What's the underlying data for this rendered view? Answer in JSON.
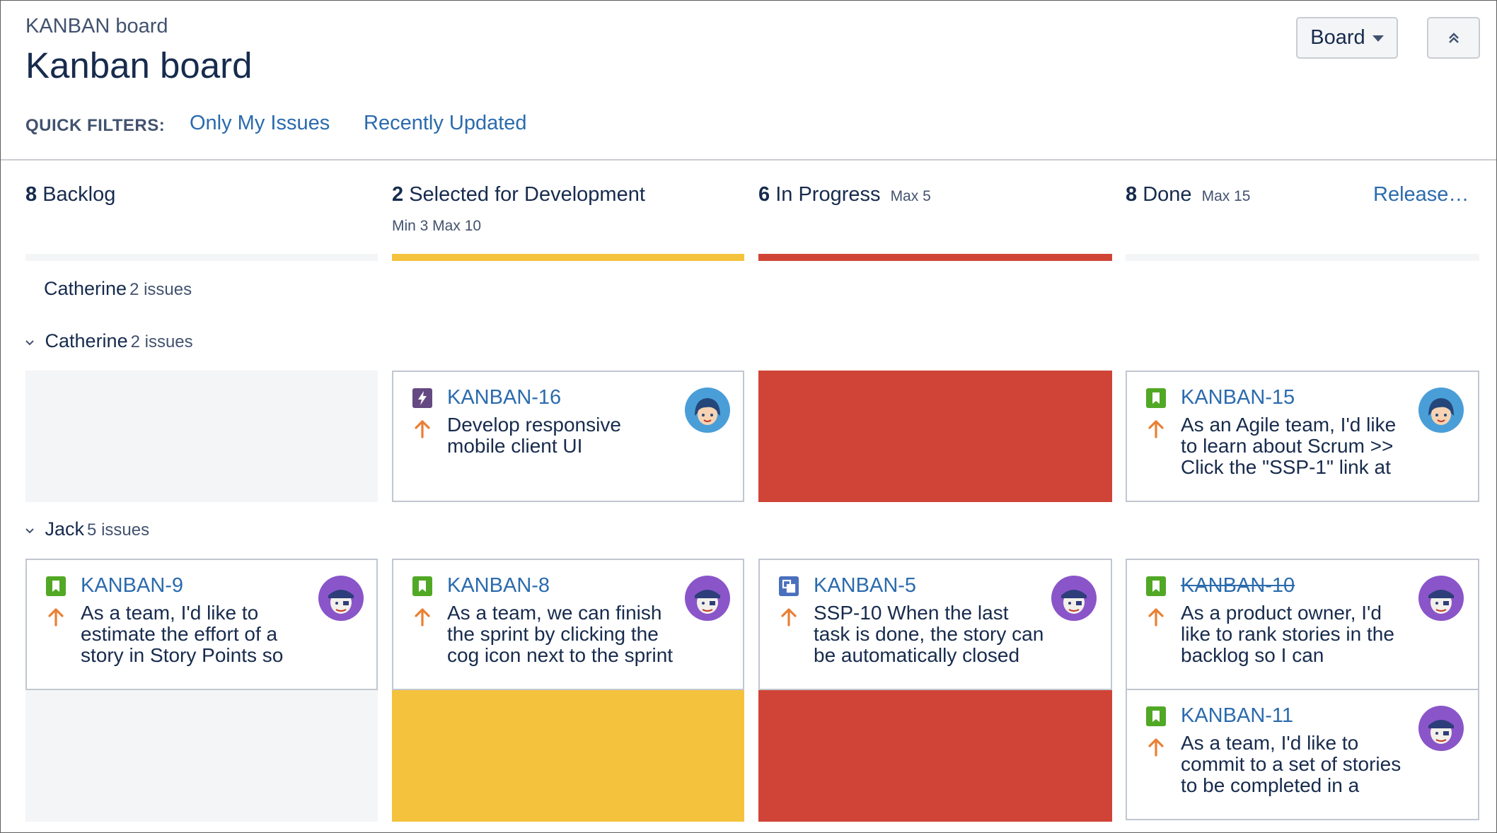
{
  "header": {
    "breadcrumb": "KANBAN board",
    "title": "Kanban board",
    "board_button": "Board"
  },
  "quick_filters": {
    "label": "QUICK FILTERS:",
    "items": [
      "Only My Issues",
      "Recently Updated"
    ]
  },
  "columns": [
    {
      "count": "8",
      "name": "Backlog",
      "limit": "",
      "sub": ""
    },
    {
      "count": "2",
      "name": "Selected for Development",
      "limit": "",
      "sub": "Min 3  Max 10"
    },
    {
      "count": "6",
      "name": "In Progress",
      "limit": "Max 5",
      "sub": ""
    },
    {
      "count": "8",
      "name": "Done",
      "limit": "Max 15",
      "sub": "",
      "action": "Release…"
    }
  ],
  "colors": {
    "link": "#2b6bad",
    "warning_yellow": "#f4c23c",
    "danger_red": "#d04437",
    "empty_grey": "#f4f5f7",
    "story_green": "#51a825",
    "epic_purple": "#654982",
    "subtask_blue": "#4a6fbd",
    "priority_orange": "#e97f33"
  },
  "swimlanes": [
    {
      "name": "Catherine",
      "count": "2 issues"
    },
    {
      "name": "Catherine",
      "count": "2 issues"
    },
    {
      "name": "Jack",
      "count": "5 issues"
    }
  ],
  "cards": {
    "kanban16": {
      "key": "KANBAN-16",
      "summary": "Develop responsive mobile client UI",
      "type_icon": "epic-icon",
      "avatar": "catherine-avatar"
    },
    "kanban15": {
      "key": "KANBAN-15",
      "summary": "As an Agile team, I'd like to learn about Scrum >> Click the \"SSP-1\" link at",
      "type_icon": "story-icon",
      "avatar": "catherine-avatar"
    },
    "kanban9": {
      "key": "KANBAN-9",
      "summary": "As a team, I'd like to estimate the effort of a story in Story Points so",
      "type_icon": "story-icon",
      "avatar": "jack-avatar"
    },
    "kanban8": {
      "key": "KANBAN-8",
      "summary": "As a team, we can finish the sprint by clicking the cog icon next to the sprint",
      "type_icon": "story-icon",
      "avatar": "jack-avatar"
    },
    "kanban5": {
      "key": "KANBAN-5",
      "summary": "SSP-10 When the last task is done, the story can be automatically closed",
      "type_icon": "subtask-icon",
      "avatar": "jack-avatar"
    },
    "kanban10": {
      "key": "KANBAN-10",
      "summary": "As a product owner, I'd like to rank stories in the backlog so I can",
      "type_icon": "story-icon",
      "avatar": "jack-avatar",
      "resolved": true
    },
    "kanban11": {
      "key": "KANBAN-11",
      "summary": "As a team, I'd like to commit to a set of stories to be completed in a",
      "type_icon": "story-icon",
      "avatar": "jack-avatar"
    }
  }
}
